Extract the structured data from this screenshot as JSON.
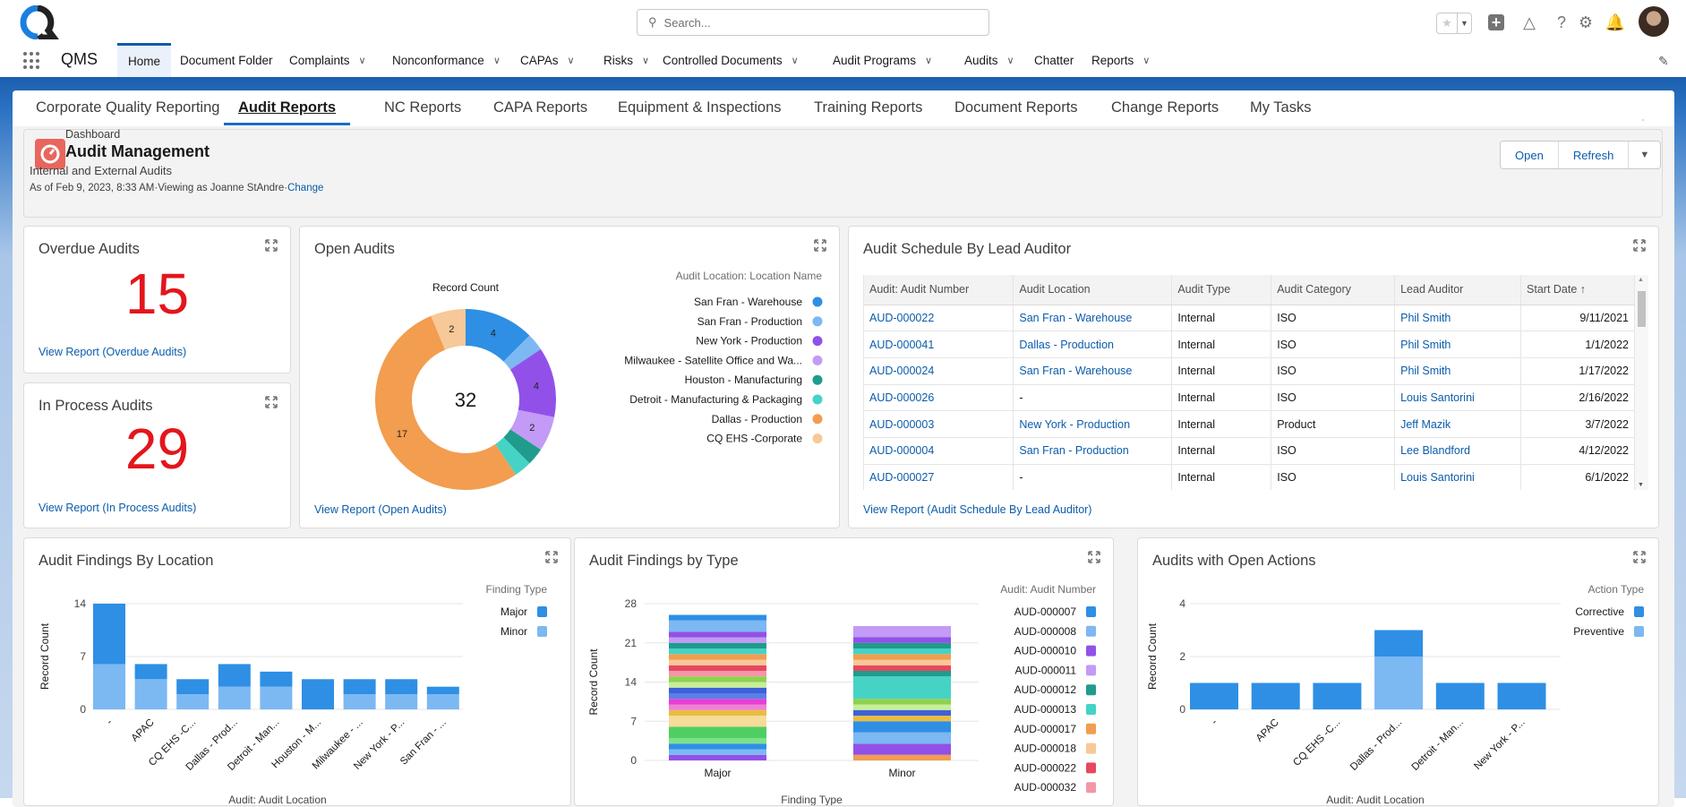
{
  "header": {
    "search_placeholder": "Search...",
    "app_name": "QMS"
  },
  "nav": [
    {
      "label": "Home",
      "chevron": false,
      "active": true
    },
    {
      "label": "Document Folder",
      "chevron": false
    },
    {
      "label": "Complaints",
      "chevron": true
    },
    {
      "label": "Nonconformance",
      "chevron": true
    },
    {
      "label": "CAPAs",
      "chevron": true
    },
    {
      "label": "Risks",
      "chevron": true
    },
    {
      "label": "Controlled Documents",
      "chevron": true
    },
    {
      "label": "Audit Programs",
      "chevron": true
    },
    {
      "label": "Audits",
      "chevron": true
    },
    {
      "label": "Chatter",
      "chevron": false
    },
    {
      "label": "Reports",
      "chevron": true
    }
  ],
  "tabs": [
    "Corporate Quality Reporting",
    "Audit Reports",
    "NC Reports",
    "CAPA Reports",
    "Equipment & Inspections",
    "Training Reports",
    "Document Reports",
    "Change Reports",
    "My Tasks"
  ],
  "active_tab": 1,
  "dashboard": {
    "label": "Dashboard",
    "title": "Audit Management",
    "subtitle": "Internal and External Audits",
    "as_of": "As of Feb 9, 2023, 8:33 AM·Viewing as Joanne StAndre·",
    "change": "Change",
    "open": "Open",
    "refresh": "Refresh"
  },
  "overdue": {
    "title": "Overdue Audits",
    "value": "15",
    "link": "View Report (Overdue Audits)"
  },
  "in_process": {
    "title": "In Process Audits",
    "value": "29",
    "link": "View Report (In Process Audits)"
  },
  "schedule": {
    "title": "Audit Schedule By Lead Auditor",
    "columns": [
      "Audit: Audit Number",
      "Audit Location",
      "Audit Type",
      "Audit Category",
      "Lead Auditor",
      "Start Date ↑"
    ],
    "rows": [
      [
        "AUD-000022",
        "San Fran - Warehouse",
        "Internal",
        "ISO",
        "Phil Smith",
        "9/11/2021"
      ],
      [
        "AUD-000041",
        "Dallas - Production",
        "Internal",
        "ISO",
        "Phil Smith",
        "1/1/2022"
      ],
      [
        "AUD-000024",
        "San Fran - Warehouse",
        "Internal",
        "ISO",
        "Phil Smith",
        "1/17/2022"
      ],
      [
        "AUD-000026",
        "-",
        "Internal",
        "ISO",
        "Louis Santorini",
        "2/16/2022"
      ],
      [
        "AUD-000003",
        "New York - Production",
        "Internal",
        "Product",
        "Jeff Mazik",
        "3/7/2022"
      ],
      [
        "AUD-000004",
        "San Fran - Production",
        "Internal",
        "ISO",
        "Lee Blandford",
        "4/12/2022"
      ],
      [
        "AUD-000027",
        "-",
        "Internal",
        "ISO",
        "Louis Santorini",
        "6/1/2022"
      ]
    ],
    "link": "View Report (Audit Schedule By Lead Auditor)"
  },
  "chart_data": [
    {
      "id": "open_audits",
      "type": "pie",
      "title": "Open Audits",
      "subtitle": "Record Count",
      "total": "32",
      "legend_title": "Audit Location: Location Name",
      "link": "View Report (Open Audits)",
      "slices": [
        {
          "label": "San Fran - Warehouse",
          "value": 4,
          "color": "#2e8fe5"
        },
        {
          "label": "San Fran - Production",
          "value": 1,
          "color": "#7cb8f2"
        },
        {
          "label": "New York - Production",
          "value": 4,
          "color": "#9151e8"
        },
        {
          "label": "Milwaukee - Satellite Office and Wa...",
          "value": 2,
          "color": "#c39af5"
        },
        {
          "label": "Houston - Manufacturing",
          "value": 1,
          "color": "#1f9c8c"
        },
        {
          "label": "Detroit - Manufacturing & Packaging",
          "value": 1,
          "color": "#45d3c6"
        },
        {
          "label": "Dallas - Production",
          "value": 17,
          "color": "#f29d4f"
        },
        {
          "label": "CQ EHS  -Corporate",
          "value": 2,
          "color": "#f7c898"
        }
      ]
    },
    {
      "id": "findings_location",
      "type": "bar",
      "stacked": true,
      "title": "Audit Findings By Location",
      "xlabel": "Audit: Audit Location",
      "ylabel": "Record Count",
      "ylim": [
        0,
        14
      ],
      "yticks": [
        0,
        7,
        14
      ],
      "legend_title": "Finding Type",
      "categories": [
        "-",
        "APAC",
        "CQ EHS -C...",
        "Dallas - Prod...",
        "Detroit - Man...",
        "Houston - M...",
        "Milwaukee - ...",
        "New York - P...",
        "San Fran - ..."
      ],
      "series": [
        {
          "name": "Major",
          "color": "#2e8fe5",
          "values": [
            8,
            2,
            2,
            3,
            2,
            4,
            2,
            2,
            1
          ]
        },
        {
          "name": "Minor",
          "color": "#7cb8f2",
          "values": [
            6,
            4,
            2,
            3,
            3,
            0,
            2,
            2,
            2
          ]
        }
      ]
    },
    {
      "id": "findings_type",
      "type": "bar",
      "stacked": true,
      "title": "Audit Findings by Type",
      "xlabel": "Finding Type",
      "ylabel": "Record Count",
      "ylim": [
        0,
        28
      ],
      "yticks": [
        0,
        7,
        14,
        21,
        28
      ],
      "legend_title": "Audit: Audit Number",
      "categories": [
        "Major",
        "Minor"
      ],
      "legend": [
        {
          "name": "AUD-000007",
          "color": "#2e8fe5"
        },
        {
          "name": "AUD-000008",
          "color": "#7cb8f2"
        },
        {
          "name": "AUD-000010",
          "color": "#9151e8"
        },
        {
          "name": "AUD-000011",
          "color": "#c39af5"
        },
        {
          "name": "AUD-000012",
          "color": "#1f9c8c"
        },
        {
          "name": "AUD-000013",
          "color": "#45d3c6"
        },
        {
          "name": "AUD-000017",
          "color": "#f29d4f"
        },
        {
          "name": "AUD-000018",
          "color": "#f7c898"
        },
        {
          "name": "AUD-000022",
          "color": "#e8485f"
        },
        {
          "name": "AUD-000032",
          "color": "#f197a6"
        }
      ],
      "stacks": [
        [
          {
            "color": "#9151e8",
            "value": 1
          },
          {
            "color": "#7cb8f2",
            "value": 1
          },
          {
            "color": "#2e8fe5",
            "value": 1
          },
          {
            "color": "#7ee08b",
            "value": 1
          },
          {
            "color": "#4fcf62",
            "value": 2
          },
          {
            "color": "#f5dc99",
            "value": 2
          },
          {
            "color": "#e9bc42",
            "value": 1
          },
          {
            "color": "#f07fd3",
            "value": 1
          },
          {
            "color": "#e83ed5",
            "value": 1
          },
          {
            "color": "#5a7fe8",
            "value": 1
          },
          {
            "color": "#3d61d8",
            "value": 1
          },
          {
            "color": "#c6ef98",
            "value": 1
          },
          {
            "color": "#8fd14f",
            "value": 1
          },
          {
            "color": "#f197a6",
            "value": 1
          },
          {
            "color": "#e8485f",
            "value": 1
          },
          {
            "color": "#f7c898",
            "value": 1
          },
          {
            "color": "#f29d4f",
            "value": 1
          },
          {
            "color": "#45d3c6",
            "value": 1
          },
          {
            "color": "#1f9c8c",
            "value": 1
          },
          {
            "color": "#c39af5",
            "value": 1
          },
          {
            "color": "#9151e8",
            "value": 1
          },
          {
            "color": "#7cb8f2",
            "value": 2
          },
          {
            "color": "#2e8fe5",
            "value": 1
          }
        ],
        [
          {
            "color": "#f29d4f",
            "value": 1
          },
          {
            "color": "#9151e8",
            "value": 2
          },
          {
            "color": "#7cb8f2",
            "value": 2
          },
          {
            "color": "#2e8fe5",
            "value": 2
          },
          {
            "color": "#e9bc42",
            "value": 1
          },
          {
            "color": "#3d61d8",
            "value": 1
          },
          {
            "color": "#c6ef98",
            "value": 1
          },
          {
            "color": "#8fd14f",
            "value": 1
          },
          {
            "color": "#45d3c6",
            "value": 4
          },
          {
            "color": "#1f9c8c",
            "value": 1
          },
          {
            "color": "#e8485f",
            "value": 1
          },
          {
            "color": "#f7c898",
            "value": 1
          },
          {
            "color": "#f29d4f",
            "value": 1
          },
          {
            "color": "#45d3c6",
            "value": 1
          },
          {
            "color": "#1f9c8c",
            "value": 1
          },
          {
            "color": "#9151e8",
            "value": 1
          },
          {
            "color": "#c39af5",
            "value": 2
          }
        ]
      ]
    },
    {
      "id": "open_actions",
      "type": "bar",
      "stacked": true,
      "title": "Audits with Open Actions",
      "xlabel": "Audit: Audit Location",
      "ylabel": "Record Count",
      "ylim": [
        0,
        4
      ],
      "yticks": [
        0,
        2,
        4
      ],
      "legend_title": "Action Type",
      "categories": [
        "-",
        "APAC",
        "CQ EHS -C...",
        "Dallas - Prod...",
        "Detroit - Man...",
        "New York - P..."
      ],
      "series": [
        {
          "name": "Corrective",
          "color": "#2e8fe5",
          "values": [
            1,
            1,
            1,
            1,
            1,
            1
          ]
        },
        {
          "name": "Preventive",
          "color": "#7cb8f2",
          "values": [
            0,
            0,
            0,
            2,
            0,
            0
          ]
        }
      ]
    }
  ]
}
